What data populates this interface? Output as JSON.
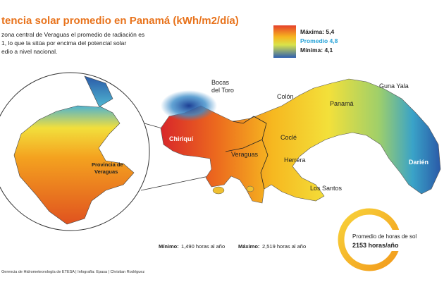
{
  "header": {
    "title": "tencia solar promedio en Panamá (kWh/m2/día)",
    "intro": [
      "zona central de Veraguas el promedio de radiación es",
      "1, lo que la sitúa por encima del potencial solar",
      "edio a nivel nacional."
    ]
  },
  "legend": {
    "max": "Máxima: 5,4",
    "avg": "Promedio 4,8",
    "min": "Mínima: 4,1"
  },
  "map": {
    "bocas": [
      "Bocas",
      "del Toro"
    ],
    "colon": "Colón",
    "guna_yala": "Guna Yala",
    "panama": "Panamá",
    "chiriqui": "Chiriquí",
    "cocle": "Coclé",
    "veraguas": "Veraguas",
    "herrera": "Herrera",
    "darien": "Darién",
    "los_santos": "Los Santos",
    "inset": [
      "Provincia de",
      "Veraguas"
    ]
  },
  "sun_hours": {
    "min_label": "Mínimo:",
    "min_value": "1,490 horas al año",
    "max_label": "Máximo:",
    "max_value": "2,519 horas al año",
    "avg_label": "Promedio de horas de sol",
    "avg_value": "2153 horas/año"
  },
  "source": "Gerencia de Hidrometeorología de ETESA | Infografía: Epasa | Christian Rodríguez"
}
